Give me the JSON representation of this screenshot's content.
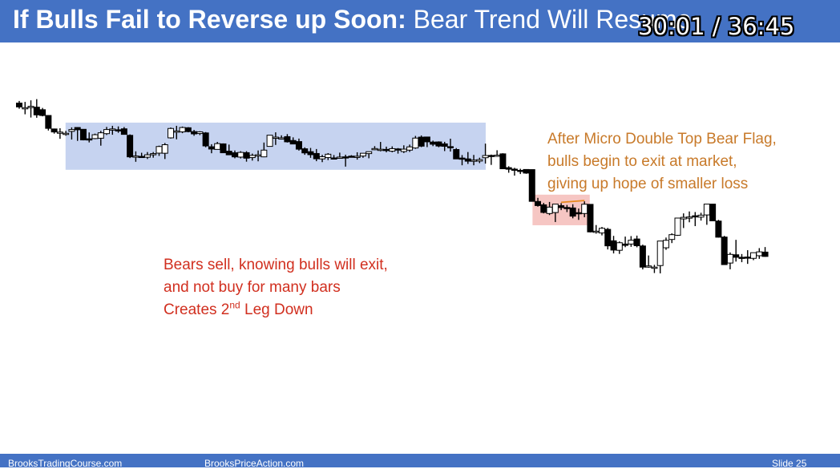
{
  "slide": {
    "title_bold": "If Bulls Fail to Reverse up Soon:",
    "title_rest": "Bear Trend Will Resume",
    "timer": "30:01 / 36:45",
    "footer_left": "BrooksTradingCourse.com",
    "footer_center": "BrooksPriceAction.com",
    "footer_right": "Slide 25",
    "header_color": "#4472c4"
  },
  "annotations": {
    "orange": [
      "After Micro Double Top Bear Flag,",
      "bulls begin to exit at market,",
      "giving up hope of smaller loss"
    ],
    "red_line1": "Bears sell, knowing bulls will exit,",
    "red_line2": "and not buy for many bars",
    "red_line3_pre": "Creates 2",
    "red_line3_sup": "nd",
    "red_line3_post": " Leg Down"
  },
  "chart_data": {
    "type": "candlestick",
    "colors": {
      "bear_body": "#000000",
      "bull_body": "#ffffff",
      "trading_range_box": "#c6d3f0",
      "bear_flag_box": "#f6c6c3",
      "double_top_line": "#e8891c"
    },
    "trading_range_box": {
      "from_bar": 9,
      "to_bar": 79
    },
    "bear_flag_box": {
      "from_bar": 89,
      "to_bar": 97
    },
    "double_top_line": {
      "from_bar": 93,
      "to_bar": 97
    },
    "candles": [
      {
        "o": 83.6,
        "h": 85.4,
        "l": 78.9,
        "c": 80.4
      },
      {
        "o": 79.5,
        "h": 84.6,
        "l": 74.3,
        "c": 79.8
      },
      {
        "o": 80.3,
        "h": 85.9,
        "l": 71.6,
        "c": 80.9
      },
      {
        "o": 80.2,
        "h": 86.9,
        "l": 71.4,
        "c": 73.8
      },
      {
        "o": 78.1,
        "h": 79.6,
        "l": 72.6,
        "c": 73.3
      },
      {
        "o": 73.3,
        "h": 73.5,
        "l": 60.8,
        "c": 62.6
      },
      {
        "o": 62.1,
        "h": 62.4,
        "l": 58.2,
        "c": 59.6
      },
      {
        "o": 58.9,
        "h": 62.7,
        "l": 53.9,
        "c": 59.5
      },
      {
        "o": 58.0,
        "h": 60.5,
        "l": 56.5,
        "c": 58.5
      },
      {
        "o": 60.1,
        "h": 63.4,
        "l": 53.3,
        "c": 61.6
      },
      {
        "o": 63.3,
        "h": 63.5,
        "l": 52.2,
        "c": 61.4
      },
      {
        "o": 61.8,
        "h": 61.8,
        "l": 52.6,
        "c": 53.0
      },
      {
        "o": 53.9,
        "h": 59.2,
        "l": 50.9,
        "c": 53.3
      },
      {
        "o": 54.1,
        "h": 58.2,
        "l": 53.6,
        "c": 57.3
      },
      {
        "o": 54.4,
        "h": 60.5,
        "l": 48.2,
        "c": 58.9
      },
      {
        "o": 58.2,
        "h": 63.8,
        "l": 57.1,
        "c": 61.6
      },
      {
        "o": 61.9,
        "h": 64.7,
        "l": 57.3,
        "c": 62.1
      },
      {
        "o": 61.4,
        "h": 64.2,
        "l": 58.9,
        "c": 61.3
      },
      {
        "o": 62.2,
        "h": 63.7,
        "l": 57.4,
        "c": 57.6
      },
      {
        "o": 56.8,
        "h": 57.6,
        "l": 37.9,
        "c": 38.9
      },
      {
        "o": 39.4,
        "h": 43.5,
        "l": 34.8,
        "c": 39.6
      },
      {
        "o": 39.3,
        "h": 42.3,
        "l": 38.2,
        "c": 38.6
      },
      {
        "o": 38.6,
        "h": 42.9,
        "l": 37.1,
        "c": 40.6
      },
      {
        "o": 40.8,
        "h": 42.9,
        "l": 38.2,
        "c": 41.6
      },
      {
        "o": 42.0,
        "h": 48.2,
        "l": 39.7,
        "c": 47.5
      },
      {
        "o": 41.9,
        "h": 50.4,
        "l": 37.1,
        "c": 49.0
      },
      {
        "o": 54.7,
        "h": 63.3,
        "l": 54.1,
        "c": 62.5
      },
      {
        "o": 59.5,
        "h": 64.7,
        "l": 53.5,
        "c": 60.4
      },
      {
        "o": 59.7,
        "h": 64.1,
        "l": 58.6,
        "c": 63.3
      },
      {
        "o": 63.1,
        "h": 63.6,
        "l": 59.3,
        "c": 59.9
      },
      {
        "o": 59.9,
        "h": 61.3,
        "l": 56.4,
        "c": 58.0
      },
      {
        "o": 58.3,
        "h": 60.2,
        "l": 57.0,
        "c": 59.7
      },
      {
        "o": 58.8,
        "h": 59.5,
        "l": 46.9,
        "c": 48.0
      },
      {
        "o": 47.3,
        "h": 49.4,
        "l": 41.9,
        "c": 45.4
      },
      {
        "o": 45.1,
        "h": 51.3,
        "l": 45.1,
        "c": 49.9
      },
      {
        "o": 49.7,
        "h": 50.1,
        "l": 42.4,
        "c": 42.3
      },
      {
        "o": 43.6,
        "h": 49.1,
        "l": 41.2,
        "c": 40.6
      },
      {
        "o": 42.3,
        "h": 44.2,
        "l": 37.7,
        "c": 38.9
      },
      {
        "o": 38.7,
        "h": 43.6,
        "l": 37.6,
        "c": 42.6
      },
      {
        "o": 42.4,
        "h": 43.6,
        "l": 34.9,
        "c": 37.8
      },
      {
        "o": 38.3,
        "h": 41.6,
        "l": 35.8,
        "c": 40.1
      },
      {
        "o": 40.2,
        "h": 44.2,
        "l": 35.2,
        "c": 40.6
      },
      {
        "o": 38.9,
        "h": 50.8,
        "l": 38.6,
        "c": 44.5
      },
      {
        "o": 47.6,
        "h": 56.8,
        "l": 47.5,
        "c": 56.9
      },
      {
        "o": 54.5,
        "h": 59.3,
        "l": 48.8,
        "c": 55.3
      },
      {
        "o": 54.7,
        "h": 56.8,
        "l": 53.3,
        "c": 54.7
      },
      {
        "o": 55.7,
        "h": 57.8,
        "l": 50.8,
        "c": 51.4
      },
      {
        "o": 52.5,
        "h": 55.1,
        "l": 49.6,
        "c": 49.6
      },
      {
        "o": 51.6,
        "h": 54.1,
        "l": 44.1,
        "c": 45.3
      },
      {
        "o": 45.6,
        "h": 46.8,
        "l": 40.6,
        "c": 42.2
      },
      {
        "o": 43.2,
        "h": 46.3,
        "l": 38.1,
        "c": 40.7
      },
      {
        "o": 41.7,
        "h": 45.4,
        "l": 35.3,
        "c": 37.3
      },
      {
        "o": 37.2,
        "h": 40.6,
        "l": 34.5,
        "c": 39.0
      },
      {
        "o": 38.3,
        "h": 42.0,
        "l": 36.2,
        "c": 41.1
      },
      {
        "o": 38.0,
        "h": 40.4,
        "l": 36.7,
        "c": 37.9
      },
      {
        "o": 38.2,
        "h": 42.4,
        "l": 37.8,
        "c": 38.7
      },
      {
        "o": 38.9,
        "h": 40.7,
        "l": 30.8,
        "c": 38.2
      },
      {
        "o": 39.5,
        "h": 40.3,
        "l": 38.7,
        "c": 39.1
      },
      {
        "o": 38.8,
        "h": 42.7,
        "l": 36.6,
        "c": 39.4
      },
      {
        "o": 39.6,
        "h": 40.7,
        "l": 38.1,
        "c": 41.9
      },
      {
        "o": 41.6,
        "h": 43.3,
        "l": 37.7,
        "c": 43.2
      },
      {
        "o": 45.1,
        "h": 47.8,
        "l": 44.5,
        "c": 45.8
      },
      {
        "o": 44.3,
        "h": 51.3,
        "l": 43.5,
        "c": 45.2
      },
      {
        "o": 45.1,
        "h": 47.4,
        "l": 42.7,
        "c": 44.4
      },
      {
        "o": 43.6,
        "h": 47.6,
        "l": 42.7,
        "c": 45.7
      },
      {
        "o": 45.5,
        "h": 46.2,
        "l": 41.6,
        "c": 44.9
      },
      {
        "o": 43.3,
        "h": 48.5,
        "l": 42.1,
        "c": 45.3
      },
      {
        "o": 44.5,
        "h": 49.1,
        "l": 43.0,
        "c": 47.2
      },
      {
        "o": 46.3,
        "h": 56.3,
        "l": 45.6,
        "c": 54.5
      },
      {
        "o": 55.3,
        "h": 56.7,
        "l": 47.0,
        "c": 47.8
      },
      {
        "o": 55.4,
        "h": 55.5,
        "l": 47.0,
        "c": 51.4
      },
      {
        "o": 51.2,
        "h": 52.4,
        "l": 47.8,
        "c": 49.4
      },
      {
        "o": 51.3,
        "h": 51.8,
        "l": 46.9,
        "c": 47.9
      },
      {
        "o": 49.7,
        "h": 51.4,
        "l": 43.7,
        "c": 47.7
      },
      {
        "o": 47.4,
        "h": 54.0,
        "l": 43.3,
        "c": 46.4
      },
      {
        "o": 45.0,
        "h": 46.2,
        "l": 37.3,
        "c": 37.2
      },
      {
        "o": 37.9,
        "h": 40.4,
        "l": 31.9,
        "c": 37.6
      },
      {
        "o": 37.2,
        "h": 42.9,
        "l": 33.0,
        "c": 35.3
      },
      {
        "o": 35.9,
        "h": 40.5,
        "l": 31.9,
        "c": 36.2
      },
      {
        "o": 35.4,
        "h": 38.2,
        "l": 33.7,
        "c": 36.6
      },
      {
        "o": 38.2,
        "h": 49.9,
        "l": 33.3,
        "c": 40.0
      },
      {
        "o": 40.1,
        "h": 40.8,
        "l": 32.2,
        "c": 39.7
      },
      {
        "o": 40.3,
        "h": 44.4,
        "l": 39.1,
        "c": 40.3
      },
      {
        "o": 41.4,
        "h": 41.9,
        "l": 29.1,
        "c": 29.0
      },
      {
        "o": 29.9,
        "h": 31.1,
        "l": 25.7,
        "c": 28.6
      },
      {
        "o": 28.7,
        "h": 29.8,
        "l": 23.3,
        "c": 28.5
      },
      {
        "o": 27.7,
        "h": 29.0,
        "l": 24.6,
        "c": 27.5
      },
      {
        "o": 28.4,
        "h": 28.6,
        "l": 24.8,
        "c": 25.4
      },
      {
        "o": 28.3,
        "h": 28.4,
        "l": 2.4,
        "c": 1.9
      },
      {
        "o": 1.8,
        "h": 4.8,
        "l": -2.5,
        "c": -1.6
      },
      {
        "o": -1.0,
        "h": 0.6,
        "l": -8.1,
        "c": -7.3
      },
      {
        "o": -8.2,
        "h": 1.4,
        "l": -9.5,
        "c": -2.9
      },
      {
        "o": -7.4,
        "h": -0.6,
        "l": -15.3,
        "c": -0.4
      },
      {
        "o": -1.7,
        "h": 0.4,
        "l": -5.4,
        "c": -3.3
      },
      {
        "o": -3.2,
        "h": -1.1,
        "l": -7.0,
        "c": -3.5
      },
      {
        "o": -3.6,
        "h": -0.5,
        "l": -12.2,
        "c": -10.4
      },
      {
        "o": -7.5,
        "h": -4.1,
        "l": -13.5,
        "c": -7.8
      },
      {
        "o": -8.2,
        "h": 1.9,
        "l": -11.3,
        "c": -0.5
      },
      {
        "o": -0.6,
        "h": -0.6,
        "l": -23.9,
        "c": -23.5
      },
      {
        "o": -23.9,
        "h": -17.8,
        "l": -24.9,
        "c": -22.9
      },
      {
        "o": -24.4,
        "h": -19.4,
        "l": -26.4,
        "c": -20.5
      },
      {
        "o": -21.4,
        "h": -20.2,
        "l": -38.1,
        "c": -35.1
      },
      {
        "o": -30.9,
        "h": -26.8,
        "l": -41.4,
        "c": -38.6
      },
      {
        "o": -38.8,
        "h": -31.4,
        "l": -41.8,
        "c": -32.5
      },
      {
        "o": -33.6,
        "h": -27.4,
        "l": -36.2,
        "c": -34.7
      },
      {
        "o": -33.6,
        "h": -27.0,
        "l": -35.9,
        "c": -30.4
      },
      {
        "o": -29.4,
        "h": -26.6,
        "l": -36.3,
        "c": -35.0
      },
      {
        "o": -35.2,
        "h": -34.1,
        "l": -54.7,
        "c": -52.8
      },
      {
        "o": -52.0,
        "h": -43.1,
        "l": -53.3,
        "c": -51.8
      },
      {
        "o": -53.3,
        "h": -50.9,
        "l": -57.7,
        "c": -52.8
      },
      {
        "o": -51.5,
        "h": -31.0,
        "l": -58.0,
        "c": -31.1
      },
      {
        "o": -36.7,
        "h": -28.2,
        "l": -38.4,
        "c": -30.5
      },
      {
        "o": -29.8,
        "h": -24.7,
        "l": -32.8,
        "c": -25.8
      },
      {
        "o": -26.3,
        "h": -12.8,
        "l": -26.8,
        "c": -12.0
      },
      {
        "o": -12.7,
        "h": -8.1,
        "l": -20.3,
        "c": -11.4
      },
      {
        "o": -11.7,
        "h": -6.5,
        "l": -15.5,
        "c": -11.1
      },
      {
        "o": -10.1,
        "h": -7.0,
        "l": -18.7,
        "c": -10.4
      },
      {
        "o": -11.2,
        "h": -7.6,
        "l": -14.1,
        "c": -9.6
      },
      {
        "o": -9.4,
        "h": -0.7,
        "l": -17.6,
        "c": -0.4
      },
      {
        "o": -0.4,
        "h": -0.3,
        "l": -14.0,
        "c": -14.3
      },
      {
        "o": -14.5,
        "h": -13.5,
        "l": -28.2,
        "c": -27.9
      },
      {
        "o": -27.8,
        "h": -26.8,
        "l": -51.0,
        "c": -50.7
      },
      {
        "o": -49.4,
        "h": -40.6,
        "l": -54.6,
        "c": -42.2
      },
      {
        "o": -42.5,
        "h": -30.1,
        "l": -48.2,
        "c": -44.6
      },
      {
        "o": -44.6,
        "h": -41.9,
        "l": -48.7,
        "c": -44.8
      },
      {
        "o": -44.4,
        "h": -38.7,
        "l": -50.1,
        "c": -44.9
      },
      {
        "o": -45.5,
        "h": -40.7,
        "l": -47.0,
        "c": -40.8
      },
      {
        "o": -43.3,
        "h": -37.0,
        "l": -45.9,
        "c": -40.1
      },
      {
        "o": -40.3,
        "h": -36.1,
        "l": -44.2,
        "c": -43.9
      }
    ]
  }
}
